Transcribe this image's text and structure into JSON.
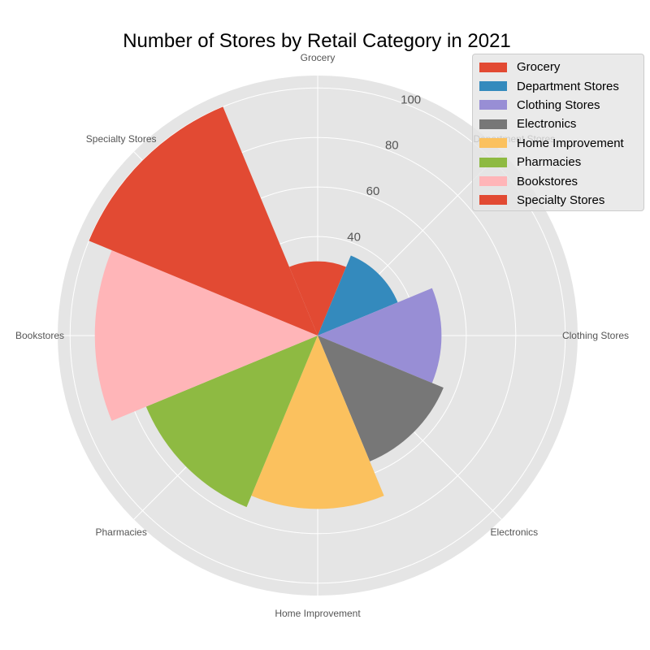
{
  "chart_data": {
    "type": "polar-bar",
    "title": "Number of Stores by Retail Category in 2021",
    "categories": [
      "Grocery",
      "Department Stores",
      "Clothing Stores",
      "Electronics",
      "Home Improvement",
      "Pharmacies",
      "Bookstores",
      "Specialty Stores"
    ],
    "values": [
      30,
      35,
      50,
      55,
      70,
      75,
      90,
      100
    ],
    "colors": [
      "#E24A33",
      "#348ABD",
      "#988ED5",
      "#777777",
      "#FBC15E",
      "#8EBA42",
      "#FFB5B8",
      "#E24A33"
    ],
    "radial_ticks": [
      "40",
      "60",
      "80",
      "100"
    ],
    "rlim": [
      0,
      105
    ],
    "grid": true,
    "legend": {
      "placement": "top-right",
      "entries": [
        "Grocery",
        "Department Stores",
        "Clothing Stores",
        "Electronics",
        "Home Improvement",
        "Pharmacies",
        "Bookstores",
        "Specialty Stores"
      ]
    }
  }
}
